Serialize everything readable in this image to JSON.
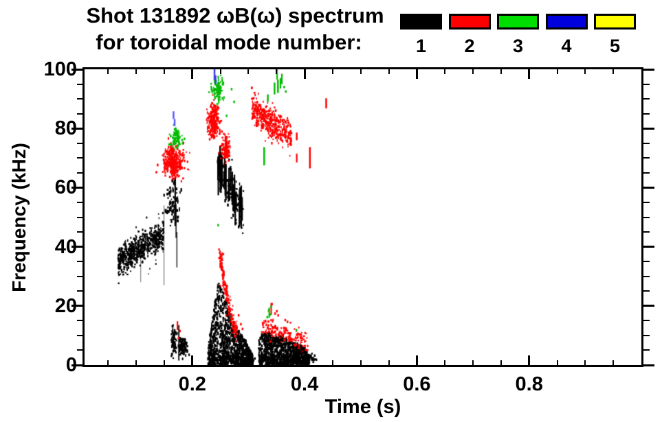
{
  "title": {
    "line1": "Shot 131892 ωB(ω) spectrum",
    "line2": "for toroidal mode number:"
  },
  "legend": {
    "entries": [
      {
        "label": "1",
        "color": "#000000"
      },
      {
        "label": "2",
        "color": "#ff0000"
      },
      {
        "label": "3",
        "color": "#00dd00"
      },
      {
        "label": "4",
        "color": "#0000dd"
      },
      {
        "label": "5",
        "color": "#ffff00"
      }
    ]
  },
  "chart_data": {
    "type": "scatter",
    "title": "Shot 131892 ωB(ω) spectrum for toroidal mode number: 1 2 3 4 5",
    "xlabel": "Time (s)",
    "ylabel": "Frequency (kHz)",
    "xlim": [
      0.008,
      1.0
    ],
    "ylim": [
      0,
      100
    ],
    "x_major_ticks": [
      0.2,
      0.4,
      0.6,
      0.8
    ],
    "x_tick_labels": [
      "0.2",
      "0.4",
      "0.6",
      "0.8"
    ],
    "x_minor_step": 0.05,
    "y_major_ticks": [
      0,
      20,
      40,
      60,
      80,
      100
    ],
    "y_tick_labels": [
      "0",
      "20",
      "40",
      "60",
      "80",
      "100"
    ],
    "y_minor_step": 5,
    "grid": false,
    "legend_position": "top-right",
    "series_colors": {
      "1": "#000000",
      "2": "#ff0000",
      "3": "#00bb00",
      "4": "#4444ff",
      "5": "#ffff00"
    },
    "clusters": [
      {
        "name": "n1-early-blob",
        "mode": 1,
        "style": "band",
        "t": [
          0.068,
          0.149
        ],
        "f": [
          35,
          44
        ],
        "spread": 2.3,
        "count": 550,
        "seed": 11,
        "dot": [
          2,
          2,
          4
        ]
      },
      {
        "name": "n1-early-halo",
        "mode": 1,
        "style": "band",
        "t": [
          0.068,
          0.149
        ],
        "f": [
          35,
          44
        ],
        "spread": 4.5,
        "count": 70,
        "seed": 12,
        "dot": [
          1.6,
          1.5,
          3
        ]
      },
      {
        "name": "n1-thin-vlines",
        "mode": 1,
        "style": "vlines",
        "lines": [
          [
            0.108,
            28,
            42,
            1.3,
            0.45
          ],
          [
            0.1495,
            27,
            54,
            1.3,
            0.5
          ],
          [
            0.1695,
            47,
            63.5,
            2.2,
            1
          ],
          [
            0.171,
            43,
            54,
            1.6,
            0.9
          ],
          [
            0.1725,
            33,
            45,
            1.6,
            0.8
          ],
          [
            0.176,
            1.5,
            13.5,
            1.8,
            1
          ]
        ]
      },
      {
        "name": "n1-dashes-55-65",
        "mode": 1,
        "style": "blob",
        "t": [
          0.152,
          0.181
        ],
        "f": [
          46,
          64
        ],
        "count": 70,
        "seed": 13,
        "dot": [
          2,
          2,
          6
        ]
      },
      {
        "name": "n1-low-cluster-a",
        "mode": 1,
        "style": "blob",
        "t": [
          0.162,
          0.172
        ],
        "f": [
          3,
          13
        ],
        "count": 90,
        "seed": 14,
        "dot": [
          2,
          2,
          4
        ]
      },
      {
        "name": "n1-low-cluster-b",
        "mode": 1,
        "style": "blob",
        "t": [
          0.174,
          0.191
        ],
        "f": [
          3,
          9.5
        ],
        "count": 130,
        "seed": 15,
        "dot": [
          2,
          2,
          4
        ]
      },
      {
        "name": "n1-streaks-50-70",
        "mode": 1,
        "style": "streaks",
        "t": [
          0.244,
          0.292
        ],
        "c": [
          67,
          52
        ],
        "hl": [
          2.5,
          6.5
        ],
        "count": 30,
        "seed": 16,
        "dot": [
          2.2,
          0,
          0
        ]
      },
      {
        "name": "n1-streaks-fill",
        "mode": 1,
        "style": "band",
        "t": [
          0.245,
          0.291
        ],
        "f": [
          66,
          52
        ],
        "spread": 4,
        "count": 110,
        "seed": 17,
        "dot": [
          2,
          2,
          5
        ]
      },
      {
        "name": "n1-chirp-triangle",
        "mode": 1,
        "style": "profile",
        "t": [
          0.228,
          0.308
        ],
        "top": [
          [
            0.228,
            6
          ],
          [
            0.2355,
            15
          ],
          [
            0.2465,
            29.5
          ],
          [
            0.258,
            23
          ],
          [
            0.2705,
            16
          ],
          [
            0.284,
            11
          ],
          [
            0.296,
            8
          ],
          [
            0.308,
            3
          ]
        ],
        "count": 950,
        "seed": 18,
        "dot": [
          2,
          2.5,
          5
        ]
      },
      {
        "name": "n1-chirp-base",
        "mode": 1,
        "style": "band",
        "t": [
          0.229,
          0.307
        ],
        "f": [
          2,
          1
        ],
        "spread": 1.4,
        "count": 200,
        "seed": 19,
        "dot": [
          2,
          2.5,
          5
        ]
      },
      {
        "name": "n1-late-blob",
        "mode": 1,
        "style": "profile",
        "t": [
          0.318,
          0.409
        ],
        "top": [
          [
            0.318,
            8
          ],
          [
            0.3245,
            10.5
          ],
          [
            0.336,
            11
          ],
          [
            0.349,
            9.5
          ],
          [
            0.3615,
            10
          ],
          [
            0.376,
            8
          ],
          [
            0.391,
            7
          ],
          [
            0.401,
            5.5
          ],
          [
            0.409,
            3
          ]
        ],
        "count": 850,
        "seed": 20,
        "dot": [
          2,
          2.5,
          5
        ]
      },
      {
        "name": "n1-late-base",
        "mode": 1,
        "style": "band",
        "t": [
          0.32,
          0.408
        ],
        "f": [
          1.5,
          1
        ],
        "spread": 1.2,
        "count": 180,
        "seed": 21,
        "dot": [
          2,
          2.5,
          5
        ]
      },
      {
        "name": "n1-late-tail",
        "mode": 1,
        "style": "blob",
        "t": [
          0.407,
          0.419
        ],
        "f": [
          0.5,
          4
        ],
        "count": 20,
        "seed": 22,
        "dot": [
          2,
          2,
          3.5
        ]
      },
      {
        "name": "n1-specks",
        "mode": 1,
        "style": "dots",
        "pts": [
          [
            0.309,
            1.5
          ],
          [
            0.3115,
            2.2
          ],
          [
            0.418,
            3.2
          ],
          [
            0.421,
            1.8
          ]
        ]
      },
      {
        "name": "n2-tae-blob",
        "mode": 2,
        "style": "blob",
        "t": [
          0.147,
          0.187
        ],
        "f": [
          63,
          75
        ],
        "count": 330,
        "seed": 31,
        "dot": [
          2,
          2,
          4
        ]
      },
      {
        "name": "n2-vlines",
        "mode": 2,
        "style": "vlines",
        "lines": [
          [
            0.1735,
            11.8,
            14.8,
            2.2,
            1
          ],
          [
            0.386,
            76,
            78.6,
            2.5,
            1
          ],
          [
            0.386,
            68.5,
            71.5,
            2.2,
            1
          ],
          [
            0.4095,
            66.5,
            73.7,
            2.5,
            1
          ],
          [
            0.4385,
            86.8,
            90.2,
            2.5,
            1
          ],
          [
            0.3405,
            17,
            21,
            2,
            1
          ]
        ]
      },
      {
        "name": "n2-upper-blob",
        "mode": 2,
        "style": "blob",
        "t": [
          0.2265,
          0.2505
        ],
        "f": [
          76.5,
          89
        ],
        "count": 230,
        "seed": 32,
        "dot": [
          2,
          2,
          4
        ]
      },
      {
        "name": "n2-mid-sparse",
        "mode": 2,
        "style": "blob",
        "t": [
          0.248,
          0.268
        ],
        "f": [
          67.5,
          78.5
        ],
        "count": 70,
        "seed": 33,
        "dot": [
          1.8,
          1.8,
          3.5
        ]
      },
      {
        "name": "n2-mid-core",
        "mode": 2,
        "style": "blob",
        "t": [
          0.2555,
          0.267
        ],
        "f": [
          68.5,
          77
        ],
        "count": 90,
        "seed": 34,
        "dot": [
          2,
          2,
          4
        ]
      },
      {
        "name": "n2-chirp",
        "mode": 2,
        "style": "chirp",
        "pts": [
          [
            0.2485,
            39
          ],
          [
            0.2525,
            33.5
          ],
          [
            0.2565,
            28.5
          ],
          [
            0.2615,
            23.5
          ],
          [
            0.2675,
            18
          ],
          [
            0.2735,
            13.5
          ],
          [
            0.2785,
            11
          ]
        ],
        "jitter": [
          0.0013,
          1.2
        ],
        "count": 170,
        "seed": 35,
        "dot": [
          2,
          2,
          3.5
        ]
      },
      {
        "name": "n2-chirp-halo",
        "mode": 2,
        "style": "chirp",
        "pts": [
          [
            0.2485,
            39
          ],
          [
            0.2525,
            33.5
          ],
          [
            0.2565,
            28.5
          ],
          [
            0.2615,
            23.5
          ],
          [
            0.2675,
            18
          ],
          [
            0.2735,
            13.5
          ],
          [
            0.2785,
            11
          ]
        ],
        "jitter": [
          0.003,
          3
        ],
        "count": 45,
        "seed": 36,
        "dot": [
          1.6,
          1.6,
          3
        ]
      },
      {
        "name": "n2-band-80",
        "mode": 2,
        "style": "band",
        "t": [
          0.306,
          0.3765
        ],
        "f": [
          86.5,
          77.5
        ],
        "spread": 2.6,
        "count": 430,
        "seed": 37,
        "dot": [
          2,
          2,
          4
        ]
      },
      {
        "name": "n2-low-band",
        "mode": 2,
        "style": "band",
        "t": [
          0.3235,
          0.406
        ],
        "f": [
          13.5,
          7.5
        ],
        "spread": 1.8,
        "count": 160,
        "seed": 38,
        "dot": [
          2,
          2,
          3.5
        ]
      },
      {
        "name": "n2-specks",
        "mode": 2,
        "style": "dots",
        "pts": [
          [
            0.136,
            65.2
          ],
          [
            0.178,
            11.5
          ],
          [
            0.1755,
            9.2
          ],
          [
            0.2825,
            16.8
          ],
          [
            0.2865,
            13.8
          ],
          [
            0.2895,
            12.2
          ],
          [
            0.3475,
            17.4
          ],
          [
            0.3505,
            18.2
          ],
          [
            0.353,
            16.8
          ],
          [
            0.3655,
            15.2
          ],
          [
            0.3695,
            14.6
          ],
          [
            0.342,
            20.6
          ]
        ]
      },
      {
        "name": "n3-blob-75",
        "mode": 3,
        "style": "blob",
        "t": [
          0.1615,
          0.1815
        ],
        "f": [
          73.5,
          80.5
        ],
        "count": 90,
        "seed": 41,
        "dot": [
          2,
          2,
          4
        ]
      },
      {
        "name": "n3-blob-93",
        "mode": 3,
        "style": "blob",
        "t": [
          0.2325,
          0.2575
        ],
        "f": [
          88.5,
          97.5
        ],
        "count": 100,
        "seed": 42,
        "dot": [
          2,
          2,
          4.5
        ]
      },
      {
        "name": "n3-vlines",
        "mode": 3,
        "style": "vlines",
        "lines": [
          [
            0.328,
            67.5,
            73.7,
            2.5,
            1
          ],
          [
            0.3345,
            89,
            91.5,
            2.5,
            1
          ],
          [
            0.3465,
            91.5,
            95.5,
            2.5,
            1
          ],
          [
            0.351,
            96.5,
            100,
            2.2,
            1
          ],
          [
            0.3525,
            92,
            96.5,
            2.5,
            1
          ],
          [
            0.357,
            93.5,
            97,
            2.2,
            1
          ],
          [
            0.3595,
            95,
            98.5,
            2.2,
            1
          ],
          [
            0.337,
            16,
            19.4,
            2.2,
            1
          ]
        ]
      },
      {
        "name": "n3-specks",
        "mode": 3,
        "style": "dots",
        "pts": [
          [
            0.261,
            84.3
          ],
          [
            0.27,
            93.3
          ],
          [
            0.2745,
            89
          ],
          [
            0.246,
            47.3
          ],
          [
            0.3335,
            16.2
          ],
          [
            0.336,
            18.4
          ],
          [
            0.3385,
            17.1
          ],
          [
            0.3405,
            19.8
          ],
          [
            0.3855,
            11.8
          ],
          [
            0.3635,
            94
          ],
          [
            0.3665,
            92.5
          ],
          [
            0.186,
            76.5
          ]
        ]
      },
      {
        "name": "n4-dashes-b",
        "mode": 4,
        "style": "vlines",
        "color": "#5a5aff",
        "lines": [
          [
            0.1665,
            83.2,
            85.8,
            2.5,
            1
          ],
          [
            0.1685,
            80.8,
            83.2,
            2.5,
            1
          ]
        ]
      },
      {
        "name": "n4-dashes-top",
        "mode": 4,
        "style": "vlines",
        "color": "#3a3af0",
        "lines": [
          [
            0.2395,
            96.5,
            100,
            2.5,
            1
          ],
          [
            0.2415,
            95,
            98,
            2.2,
            1
          ]
        ]
      }
    ]
  }
}
